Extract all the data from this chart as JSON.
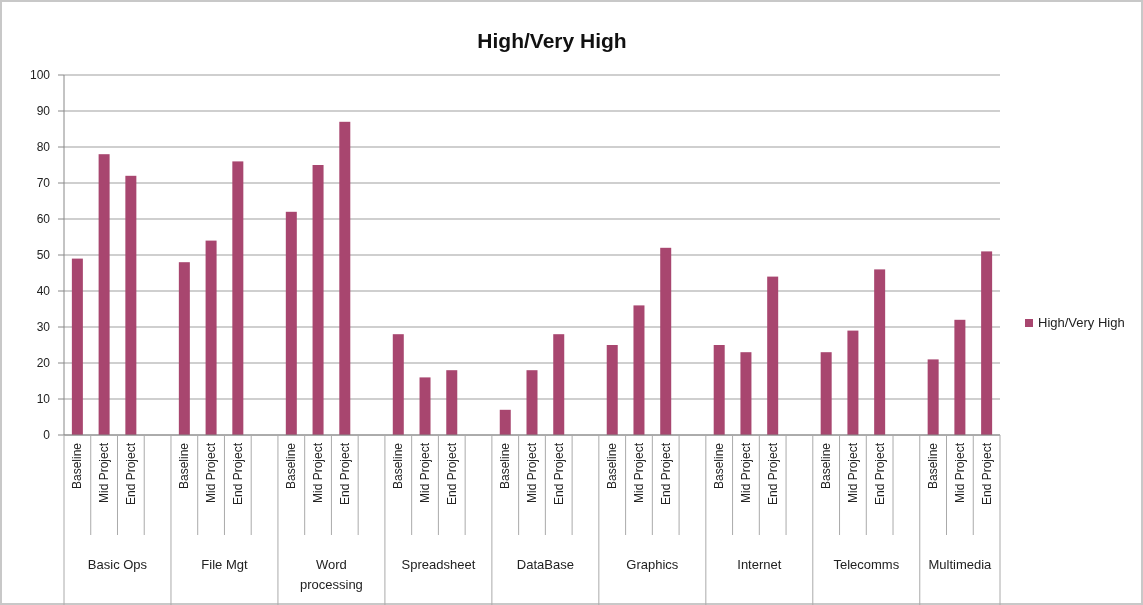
{
  "chart_data": {
    "type": "bar",
    "title": "High/Very High",
    "categories": [
      "Baseline",
      "Mid Project",
      "End Project",
      null,
      "Baseline",
      "Mid Project",
      "End Project",
      null,
      "Baseline",
      "Mid Project",
      "End Project",
      null,
      "Baseline",
      "Mid Project",
      "End Project",
      null,
      "Baseline",
      "Mid Project",
      "End Project",
      null,
      "Baseline",
      "Mid Project",
      "End Project",
      null,
      "Baseline",
      "Mid Project",
      "End Project",
      null,
      "Baseline",
      "Mid Project",
      "End Project",
      null,
      "Baseline",
      "Mid Project",
      "End Project"
    ],
    "series": [
      {
        "name": "High/Very High",
        "color": "#a8466f",
        "values": [
          49,
          78,
          72,
          null,
          48,
          54,
          76,
          null,
          62,
          75,
          87,
          null,
          28,
          16,
          18,
          null,
          7,
          18,
          28,
          null,
          25,
          36,
          52,
          null,
          25,
          23,
          44,
          null,
          23,
          29,
          46,
          null,
          21,
          32,
          51
        ]
      }
    ],
    "annotations": [
      "Basic Ops",
      "File Mgt",
      "Word processing",
      "Spreadsheet",
      "DataBase",
      "Graphics",
      "Internet",
      "Telecomms",
      "Multimedia"
    ],
    "ylim": [
      0,
      100
    ],
    "yticks": [
      0,
      10,
      20,
      30,
      40,
      50,
      60,
      70,
      80,
      90,
      100
    ],
    "grid": "y",
    "legend": "right"
  }
}
